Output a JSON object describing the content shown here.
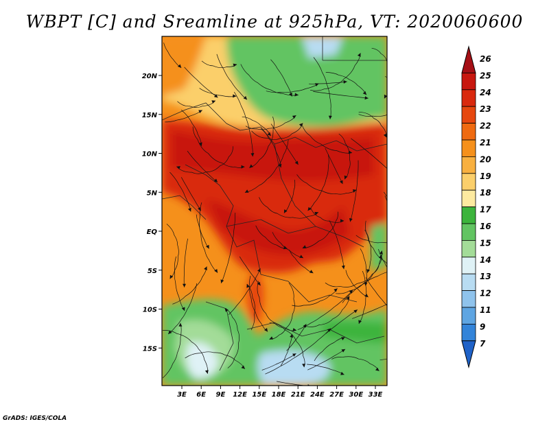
{
  "title": "WBPT [C] and Sreamline at 925hPa, VT: 2020060600",
  "credit": "GrADS: IGES/COLA",
  "map": {
    "lat_labels": [
      "20N",
      "15N",
      "10N",
      "5N",
      "EQ",
      "5S",
      "10S",
      "15S"
    ],
    "lon_labels": [
      "3E",
      "6E",
      "9E",
      "12E",
      "15E",
      "18E",
      "21E",
      "24E",
      "27E",
      "30E",
      "33E"
    ]
  },
  "colorbar": {
    "labels": [
      "26",
      "25",
      "24",
      "23",
      "22",
      "21",
      "20",
      "19",
      "18",
      "17",
      "16",
      "15",
      "14",
      "13",
      "12",
      "11",
      "9",
      "7"
    ],
    "colors": [
      "#a50f15",
      "#c8170f",
      "#d9290e",
      "#e6470e",
      "#ef6a10",
      "#f5901b",
      "#f8b040",
      "#fbcf6b",
      "#fdeaa0",
      "#3cb43c",
      "#62c462",
      "#a3dc98",
      "#dff2f6",
      "#b8dcf2",
      "#8fc3ec",
      "#5ea5e2",
      "#3384d9",
      "#1f62c8"
    ]
  }
}
